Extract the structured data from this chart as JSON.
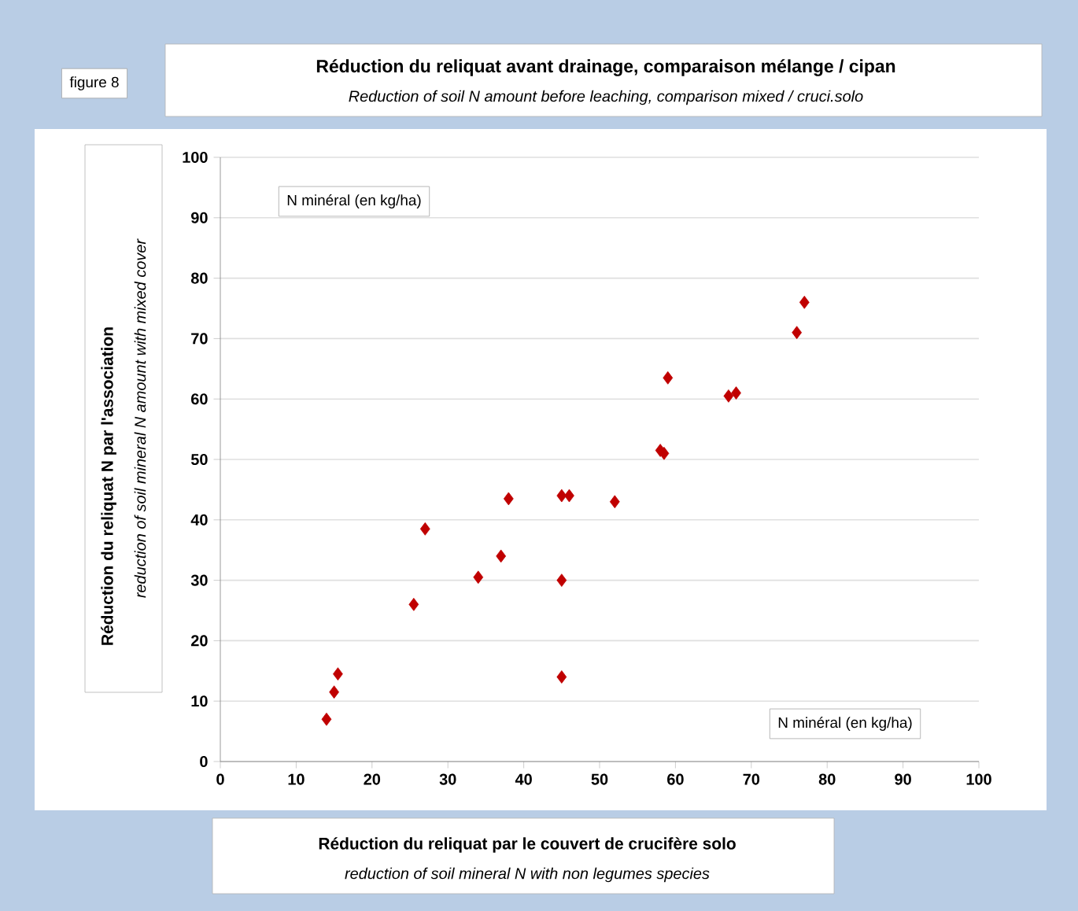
{
  "chart_data": {
    "type": "scatter",
    "title": "Réduction du reliquat avant drainage, comparaison mélange / cipan",
    "subtitle": "Reduction of soil N amount before leaching, comparison mixed / cruci.solo",
    "xlabel": "Réduction du reliquat par le couvert de crucifère solo",
    "ylabel": "Réduction du reliquat N par l'association",
    "annotations": [
      "figure 8",
      "reduction of soil mineral N with non legumes species",
      "reduction of soil mineral N amount with mixed cover",
      "N minéral (en  kg/ha)",
      "N minéral (en  kg/ha)"
    ],
    "x": [
      14,
      15,
      15.5,
      25.5,
      27,
      34,
      37,
      38,
      45,
      46,
      45,
      45,
      52,
      58,
      58.5,
      59,
      67,
      68,
      76,
      77
    ],
    "values": [
      7,
      11.5,
      14.5,
      26,
      38.5,
      30.5,
      34,
      43.5,
      44,
      44,
      30,
      14,
      43,
      51.5,
      51,
      63.5,
      60.5,
      61,
      71,
      76
    ],
    "color": "#c00000",
    "marker": "diamond",
    "grid": "y",
    "xlim": [
      0,
      100
    ],
    "xticks": [
      0,
      10,
      20,
      30,
      40,
      50,
      60,
      70,
      80,
      90,
      100
    ],
    "ylim": [
      0,
      100
    ],
    "yticks": [
      0,
      10,
      20,
      30,
      40,
      50,
      60,
      70,
      80,
      90,
      100
    ]
  }
}
